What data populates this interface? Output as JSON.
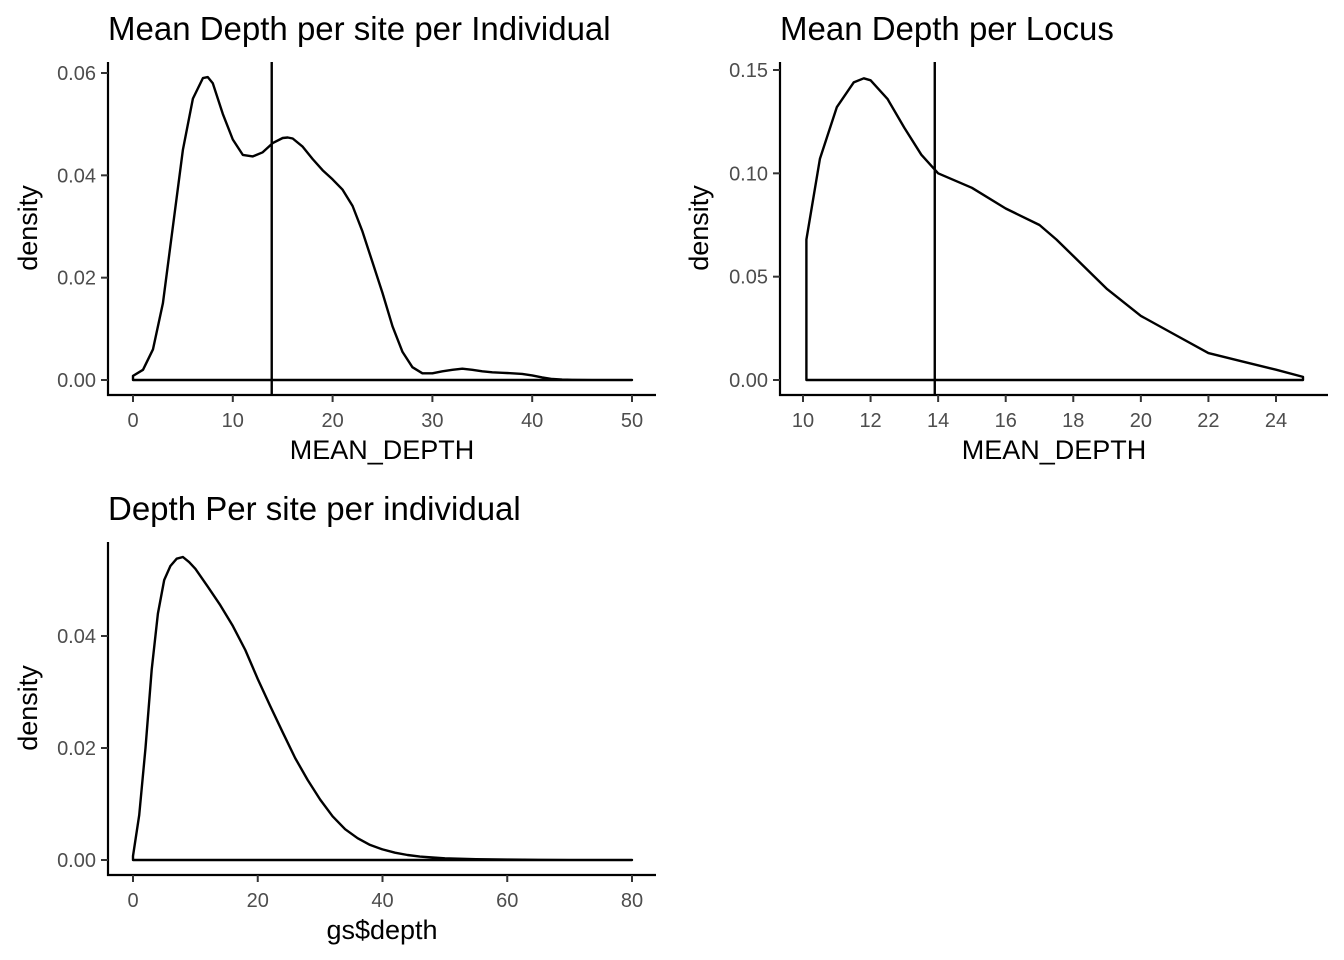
{
  "chart_data": [
    {
      "type": "line",
      "title": "Mean Depth per site per Individual",
      "xlabel": "MEAN_DEPTH",
      "ylabel": "density",
      "xlim": [
        0,
        50
      ],
      "ylim": [
        0,
        0.06
      ],
      "x_ticks": [
        0,
        10,
        20,
        30,
        40,
        50
      ],
      "x_tick_labels": [
        "0",
        "10",
        "20",
        "30",
        "40",
        "50"
      ],
      "y_ticks": [
        0,
        0.02,
        0.04,
        0.06
      ],
      "y_tick_labels": [
        "0.00",
        "0.02",
        "0.04",
        "0.06"
      ],
      "vline": 13.9,
      "grid": false,
      "series": [
        {
          "x": [
            0,
            1,
            2,
            3,
            4,
            5,
            6,
            7,
            7.5,
            8,
            9,
            10,
            11,
            12,
            13,
            14,
            15,
            15.5,
            16,
            17,
            18,
            19,
            20,
            21,
            22,
            23,
            24,
            25,
            26,
            27,
            28,
            29,
            30,
            31,
            32,
            33,
            34,
            35,
            36,
            37,
            38,
            39,
            40,
            41,
            42,
            43,
            44,
            46,
            48,
            50
          ],
          "values": [
            0.0008,
            0.002,
            0.006,
            0.015,
            0.03,
            0.045,
            0.055,
            0.059,
            0.0592,
            0.058,
            0.052,
            0.047,
            0.044,
            0.0437,
            0.0445,
            0.0463,
            0.0473,
            0.0474,
            0.0472,
            0.0456,
            0.0432,
            0.041,
            0.0392,
            0.0372,
            0.034,
            0.029,
            0.023,
            0.017,
            0.0105,
            0.0055,
            0.0025,
            0.0013,
            0.0013,
            0.0017,
            0.002,
            0.0022,
            0.002,
            0.0017,
            0.0015,
            0.0014,
            0.0013,
            0.0012,
            0.0009,
            0.0005,
            0.0002,
            8e-05,
            3e-05,
            1e-05,
            0,
            0
          ]
        }
      ]
    },
    {
      "type": "line",
      "title": "Mean Depth per Locus",
      "xlabel": "MEAN_DEPTH",
      "ylabel": "density",
      "xlim": [
        9.5,
        25.3
      ],
      "ylim": [
        0,
        0.15
      ],
      "x_ticks": [
        10,
        12,
        14,
        16,
        18,
        20,
        22,
        24
      ],
      "x_tick_labels": [
        "10",
        "12",
        "14",
        "16",
        "18",
        "20",
        "22",
        "24"
      ],
      "y_ticks": [
        0,
        0.05,
        0.1,
        0.15
      ],
      "y_tick_labels": [
        "0.00",
        "0.05",
        "0.10",
        "0.15"
      ],
      "vline": 13.9,
      "grid": false,
      "series": [
        {
          "x": [
            10.1,
            10.5,
            11,
            11.5,
            11.8,
            12,
            12.5,
            13,
            13.5,
            14,
            15,
            16,
            17,
            17.5,
            18,
            19,
            20,
            21,
            22,
            23,
            24,
            24.8
          ],
          "values": [
            0.068,
            0.107,
            0.132,
            0.144,
            0.146,
            0.145,
            0.136,
            0.122,
            0.109,
            0.1,
            0.093,
            0.083,
            0.075,
            0.068,
            0.06,
            0.044,
            0.031,
            0.022,
            0.013,
            0.009,
            0.005,
            0.0015
          ]
        }
      ]
    },
    {
      "type": "line",
      "title": "Depth Per site per individual",
      "xlabel": "gs$depth",
      "ylabel": "density",
      "xlim": [
        0,
        80
      ],
      "ylim": [
        0,
        0.054
      ],
      "x_ticks": [
        0,
        20,
        40,
        60,
        80
      ],
      "x_tick_labels": [
        "0",
        "20",
        "40",
        "60",
        "80"
      ],
      "y_ticks": [
        0,
        0.02,
        0.04
      ],
      "y_tick_labels": [
        "0.00",
        "0.02",
        "0.04"
      ],
      "grid": false,
      "series": [
        {
          "x": [
            0,
            1,
            2,
            3,
            4,
            5,
            6,
            7,
            8,
            9,
            10,
            12,
            14,
            16,
            18,
            20,
            22,
            24,
            26,
            28,
            30,
            32,
            34,
            36,
            38,
            40,
            42,
            44,
            46,
            48,
            50,
            55,
            60,
            65,
            70,
            75,
            80
          ],
          "values": [
            0.0007,
            0.008,
            0.02,
            0.034,
            0.044,
            0.05,
            0.0525,
            0.0538,
            0.0541,
            0.0532,
            0.052,
            0.0488,
            0.0455,
            0.0418,
            0.0375,
            0.0323,
            0.0275,
            0.0228,
            0.0182,
            0.0143,
            0.0108,
            0.0078,
            0.0055,
            0.0039,
            0.0027,
            0.0019,
            0.0013,
            0.0009,
            0.0006,
            0.00045,
            0.0003,
            0.00015,
            8e-05,
            4e-05,
            2e-05,
            1e-05,
            5e-06
          ]
        }
      ]
    }
  ]
}
